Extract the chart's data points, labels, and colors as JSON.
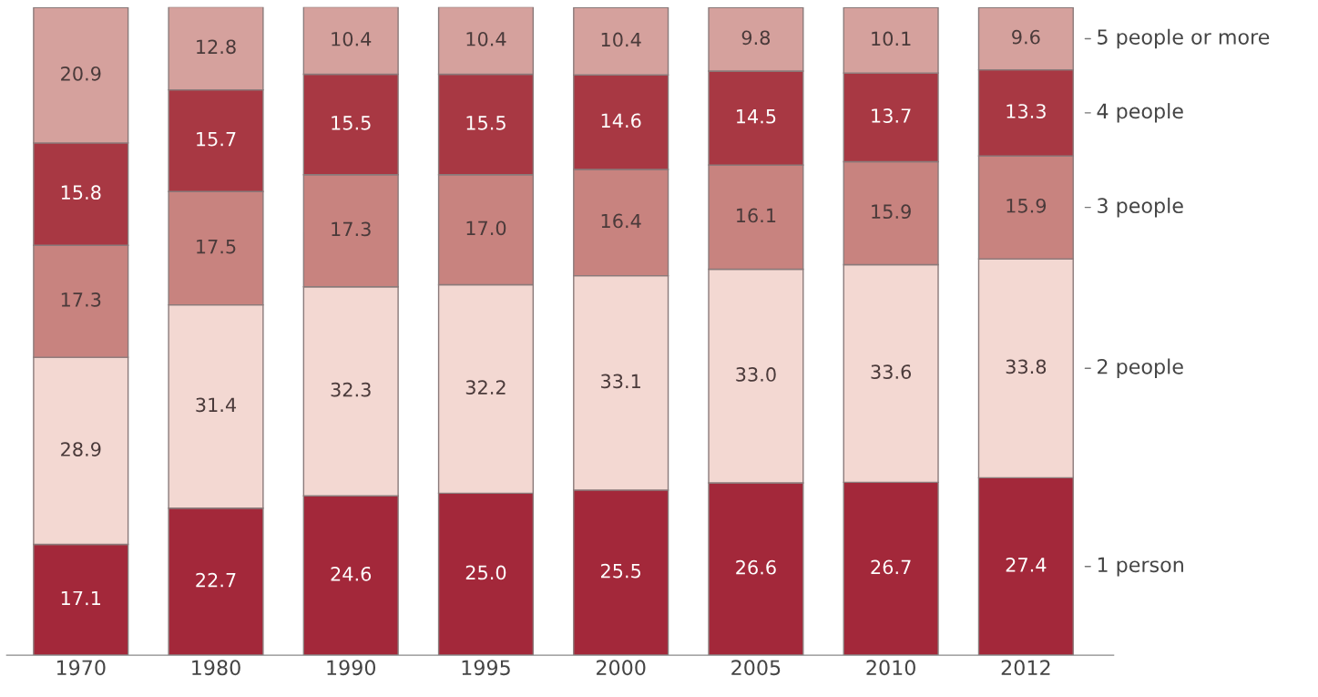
{
  "chart_data": {
    "type": "bar",
    "stacked": true,
    "grid": false,
    "legend": false,
    "categories": [
      "1970",
      "1980",
      "1990",
      "1995",
      "2000",
      "2005",
      "2010",
      "2012"
    ],
    "series": [
      {
        "name": "1 person",
        "color": "#a3283a",
        "values": [
          17.1,
          22.7,
          24.6,
          25.0,
          25.5,
          26.6,
          26.7,
          27.4
        ],
        "value_labels": [
          "17.1",
          "22.7",
          "24.6",
          "25.0",
          "25.5",
          "26.6",
          "26.7",
          "27.4"
        ]
      },
      {
        "name": "2 people",
        "color": "#f3d8d2",
        "values": [
          28.9,
          31.4,
          32.3,
          32.2,
          33.1,
          33.0,
          33.6,
          33.8
        ],
        "value_labels": [
          "28.9",
          "31.4",
          "32.3",
          "32.2",
          "33.1",
          "33.0",
          "33.6",
          "33.8"
        ]
      },
      {
        "name": "3 people",
        "color": "#c8837f",
        "values": [
          17.3,
          17.5,
          17.3,
          17.0,
          16.4,
          16.1,
          15.9,
          15.9
        ],
        "value_labels": [
          "17.3",
          "17.5",
          "17.3",
          "17.0",
          "16.4",
          "16.1",
          "15.9",
          "15.9"
        ]
      },
      {
        "name": "4 people",
        "color": "#a83843",
        "values": [
          15.8,
          15.7,
          15.5,
          15.5,
          14.6,
          14.5,
          13.7,
          13.3
        ],
        "value_labels": [
          "15.8",
          "15.7",
          "15.5",
          "15.5",
          "14.6",
          "14.5",
          "13.7",
          "13.3"
        ]
      },
      {
        "name": "5 people or more",
        "color": "#d5a19d",
        "values": [
          20.9,
          12.8,
          10.4,
          10.4,
          10.4,
          9.8,
          10.1,
          9.6
        ],
        "value_labels": [
          "20.9",
          "12.8",
          "10.4",
          "10.4",
          "10.4",
          "9.8",
          "10.1",
          "9.6"
        ]
      }
    ]
  }
}
